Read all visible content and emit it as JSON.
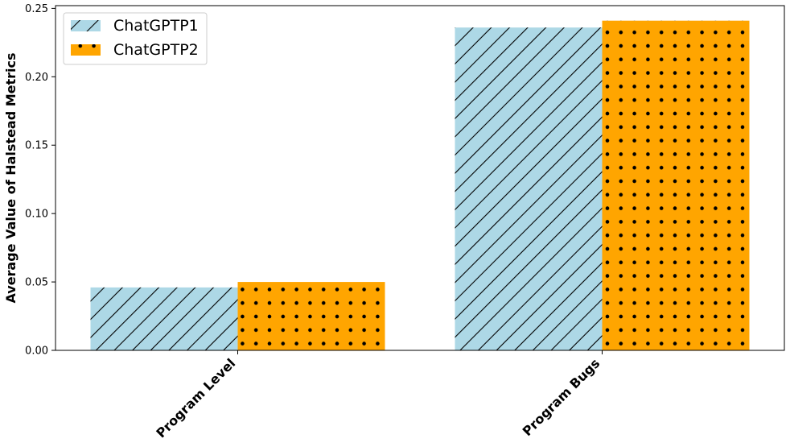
{
  "chart_data": {
    "type": "bar",
    "categories": [
      "Program Level",
      "Program Bugs"
    ],
    "series": [
      {
        "name": "ChatGPTP1",
        "values": [
          0.046,
          0.236
        ],
        "color": "#add8e6",
        "pattern": "diagonal-hatch"
      },
      {
        "name": "ChatGPTP2",
        "values": [
          0.05,
          0.241
        ],
        "color": "#ffa500",
        "pattern": "dots"
      }
    ],
    "ylabel": "Average Value of Halstead Metrics",
    "xlabel": "",
    "ylim": [
      0,
      0.252
    ],
    "yticks": [
      0.0,
      0.05,
      0.1,
      0.15,
      0.2,
      0.25
    ],
    "ytick_labels": [
      "0.00",
      "0.05",
      "0.10",
      "0.15",
      "0.20",
      "0.25"
    ],
    "legend_position": "top-left",
    "grid": false
  }
}
